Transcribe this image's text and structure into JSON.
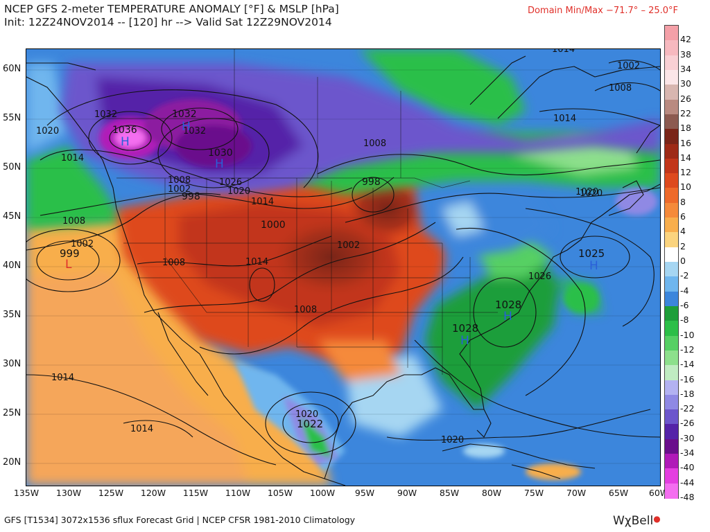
{
  "header": {
    "title_line1": "NCEP GFS 2-meter TEMPERATURE ANOMALY [°F] & MSLP [hPa]",
    "title_line2": "Init: 12Z24NOV2014 -- [120] hr --> Valid Sat 12Z29NOV2014",
    "domain_minmax": "Domain Min/Max −71.7° – 25.0°F"
  },
  "axes": {
    "lat_labels": [
      "60N",
      "55N",
      "50N",
      "45N",
      "40N",
      "35N",
      "30N",
      "25N",
      "20N"
    ],
    "lon_labels": [
      "135W",
      "130W",
      "125W",
      "120W",
      "115W",
      "110W",
      "105W",
      "100W",
      "95W",
      "90W",
      "85W",
      "80W",
      "75W",
      "70W",
      "65W",
      "60W"
    ]
  },
  "colorbar": {
    "labels": [
      "42",
      "38",
      "34",
      "30",
      "26",
      "22",
      "18",
      "16",
      "14",
      "12",
      "10",
      "8",
      "6",
      "4",
      "2",
      "0",
      "-2",
      "-4",
      "-6",
      "-8",
      "-10",
      "-12",
      "-14",
      "-16",
      "-18",
      "-22",
      "-26",
      "-30",
      "-34",
      "-40",
      "-44",
      "-48"
    ],
    "colors": [
      "#f4a0a8",
      "#f7b9bf",
      "#f9d0d4",
      "#fbe6e8",
      "#d8b6b0",
      "#b98a80",
      "#8c5a50",
      "#7a2518",
      "#9e2a16",
      "#c2361a",
      "#de4a1e",
      "#ee6a2a",
      "#f58a3a",
      "#f8ae4c",
      "#fbd47e",
      "#ffffff",
      "#a6d6f2",
      "#6fb6ee",
      "#3c86dc",
      "#1e9e3a",
      "#2cbf48",
      "#56d064",
      "#8de08c",
      "#c0ecc2",
      "#b3b2f2",
      "#8f89e4",
      "#6c56cc",
      "#5423a8",
      "#6a0f8c",
      "#b01ab8",
      "#e43ee0",
      "#f46ef0"
    ]
  },
  "isobars": {
    "labels": [
      "1032",
      "1036",
      "1032",
      "1032",
      "1030",
      "1026",
      "1020",
      "1014",
      "1008",
      "1002",
      "998",
      "1020",
      "1014",
      "1008",
      "1002",
      "999",
      "1008",
      "1000",
      "1002",
      "1014",
      "1008",
      "998",
      "1008",
      "1014",
      "1020",
      "1002",
      "1008",
      "1014",
      "1020",
      "1025",
      "1026",
      "1028",
      "1028",
      "1014",
      "1014",
      "1020",
      "1022",
      "1020"
    ],
    "centers": [
      {
        "letter": "H",
        "color": "#2a5fd8"
      },
      {
        "letter": "H",
        "color": "#2a5fd8"
      },
      {
        "letter": "H",
        "color": "#2a5fd8"
      },
      {
        "letter": "L",
        "color": "#e0302a"
      },
      {
        "letter": "H",
        "color": "#2a5fd8"
      },
      {
        "letter": "H",
        "color": "#2a5fd8"
      },
      {
        "letter": "H",
        "color": "#2a5fd8"
      }
    ]
  },
  "footer": {
    "text": "GFS [T1534] 3072x1536 sflux Forecast Grid | NCEP CFSR 1981-2010 Climatology",
    "brand": "WχBell"
  }
}
